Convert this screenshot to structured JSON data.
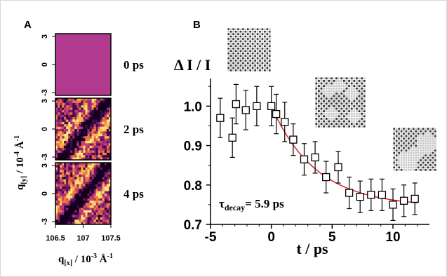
{
  "panel_a": {
    "letter": "A",
    "ylabel_main": "q",
    "ylabel_sub": "[y]",
    "ylabel_rest": " / 10",
    "ylabel_exp": "-4",
    "ylabel_unit": " Å",
    "ylabel_unit_exp": "-1",
    "xlabel_main": "q",
    "xlabel_sub": "[x]",
    "xlabel_rest": " / 10",
    "xlabel_exp": "-3",
    "xlabel_unit": " Å",
    "xlabel_unit_exp": "-1",
    "xticks": [
      "106.5",
      "107",
      "107.5"
    ],
    "yticks": [
      "3",
      "0",
      "-3"
    ],
    "times": [
      "0 ps",
      "2 ps",
      "4 ps"
    ],
    "colors": {
      "uniform": "#b23a8e",
      "dark": "#14001e",
      "mid": "#7a1f6e",
      "bright": "#f0a838",
      "light": "#fbe27a"
    }
  },
  "chart_data": {
    "type": "scatter",
    "panel_letter": "B",
    "xlabel": "t / ps",
    "ylabel": "Δ I / I",
    "xlim": [
      -5,
      13
    ],
    "ylim": [
      0.7,
      1.07
    ],
    "xticks": [
      -5,
      0,
      5,
      10
    ],
    "yticks": [
      0.7,
      0.8,
      0.9,
      1.0
    ],
    "xtick_labels": [
      "-5",
      "0",
      "5",
      "10"
    ],
    "ytick_labels": [
      "0.7",
      "0.8",
      "0.9",
      "1.0"
    ],
    "grid": false,
    "annotation": {
      "symbol": "τ",
      "sub": "decay",
      "text": "= 5.9 ps"
    },
    "series": [
      {
        "marker": "open-square",
        "x": [
          -4.2,
          -3.2,
          -2.9,
          -2.1,
          -1.2,
          0.0,
          0.4,
          1.1,
          1.8,
          2.7,
          3.6,
          4.5,
          5.5,
          6.4,
          7.3,
          8.2,
          9.1,
          10.0,
          10.9,
          11.8
        ],
        "y": [
          0.97,
          0.92,
          1.005,
          0.99,
          1.0,
          1.0,
          0.98,
          0.96,
          0.915,
          0.865,
          0.87,
          0.82,
          0.845,
          0.78,
          0.77,
          0.775,
          0.775,
          0.75,
          0.76,
          0.765
        ],
        "yerr": [
          0.05,
          0.05,
          0.05,
          0.05,
          0.05,
          0.05,
          0.05,
          0.05,
          0.04,
          0.04,
          0.04,
          0.04,
          0.04,
          0.04,
          0.04,
          0.04,
          0.04,
          0.04,
          0.04,
          0.04
        ]
      },
      {
        "type": "line",
        "color": "#e03030",
        "model": "exponential decay",
        "t0": 0.0,
        "y_start": 1.0,
        "y_inf": 0.745,
        "tau": 5.9,
        "x_end": 12.0
      }
    ],
    "colors": {
      "fit": "#e03030"
    }
  }
}
